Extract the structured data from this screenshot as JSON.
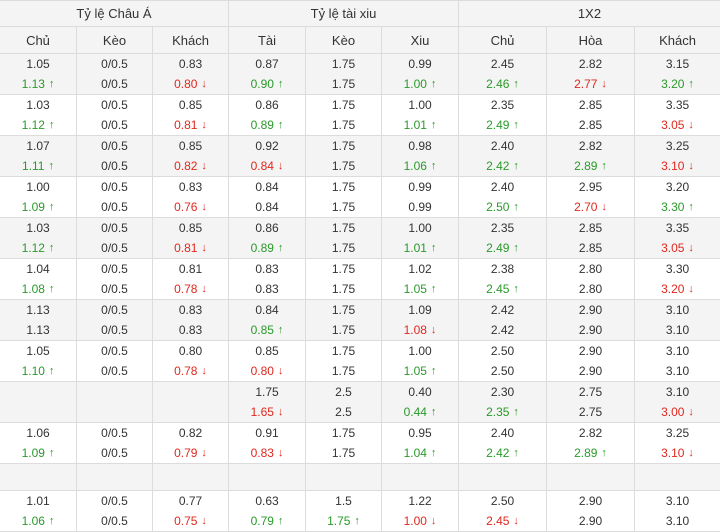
{
  "groups": [
    "Tỷ lệ Châu Á",
    "Tỷ lệ tài xiu",
    "1X2"
  ],
  "columns": [
    "Chủ",
    "Kèo",
    "Khách",
    "Tài",
    "Kèo",
    "Xiu",
    "Chủ",
    "Hòa",
    "Khách"
  ],
  "colors": {
    "up": "#2a9a2a",
    "down": "#e0281e",
    "header_bg": "#f4f4f4",
    "grid": "#dcdcdc"
  },
  "rows": [
    {
      "cells": [
        [
          "1.05",
          "1.13u"
        ],
        [
          "0/0.5",
          "0/0.5"
        ],
        [
          "0.83",
          "0.80d"
        ],
        [
          "0.87",
          "0.90u"
        ],
        [
          "1.75",
          "1.75"
        ],
        [
          "0.99",
          "1.00u"
        ],
        [
          "2.45",
          "2.46u"
        ],
        [
          "2.82",
          "2.77d"
        ],
        [
          "3.15",
          "3.20u"
        ]
      ]
    },
    {
      "cells": [
        [
          "1.03",
          "1.12u"
        ],
        [
          "0/0.5",
          "0/0.5"
        ],
        [
          "0.85",
          "0.81d"
        ],
        [
          "0.86",
          "0.89u"
        ],
        [
          "1.75",
          "1.75"
        ],
        [
          "1.00",
          "1.01u"
        ],
        [
          "2.35",
          "2.49u"
        ],
        [
          "2.85",
          "2.85"
        ],
        [
          "3.35",
          "3.05d"
        ]
      ]
    },
    {
      "cells": [
        [
          "1.07",
          "1.11u"
        ],
        [
          "0/0.5",
          "0/0.5"
        ],
        [
          "0.85",
          "0.82d"
        ],
        [
          "0.92",
          "0.84d"
        ],
        [
          "1.75",
          "1.75"
        ],
        [
          "0.98",
          "1.06u"
        ],
        [
          "2.40",
          "2.42u"
        ],
        [
          "2.82",
          "2.89u"
        ],
        [
          "3.25",
          "3.10d"
        ]
      ]
    },
    {
      "cells": [
        [
          "1.00",
          "1.09u"
        ],
        [
          "0/0.5",
          "0/0.5"
        ],
        [
          "0.83",
          "0.76d"
        ],
        [
          "0.84",
          "0.84"
        ],
        [
          "1.75",
          "1.75"
        ],
        [
          "0.99",
          "0.99"
        ],
        [
          "2.40",
          "2.50u"
        ],
        [
          "2.95",
          "2.70d"
        ],
        [
          "3.20",
          "3.30u"
        ]
      ]
    },
    {
      "cells": [
        [
          "1.03",
          "1.12u"
        ],
        [
          "0/0.5",
          "0/0.5"
        ],
        [
          "0.85",
          "0.81d"
        ],
        [
          "0.86",
          "0.89u"
        ],
        [
          "1.75",
          "1.75"
        ],
        [
          "1.00",
          "1.01u"
        ],
        [
          "2.35",
          "2.49u"
        ],
        [
          "2.85",
          "2.85"
        ],
        [
          "3.35",
          "3.05d"
        ]
      ]
    },
    {
      "cells": [
        [
          "1.04",
          "1.08u"
        ],
        [
          "0/0.5",
          "0/0.5"
        ],
        [
          "0.81",
          "0.78d"
        ],
        [
          "0.83",
          "0.83"
        ],
        [
          "1.75",
          "1.75"
        ],
        [
          "1.02",
          "1.05u"
        ],
        [
          "2.38",
          "2.45u"
        ],
        [
          "2.80",
          "2.80"
        ],
        [
          "3.30",
          "3.20d"
        ]
      ]
    },
    {
      "cells": [
        [
          "1.13",
          "1.13"
        ],
        [
          "0/0.5",
          "0/0.5"
        ],
        [
          "0.83",
          "0.83"
        ],
        [
          "0.84",
          "0.85u"
        ],
        [
          "1.75",
          "1.75"
        ],
        [
          "1.09",
          "1.08d"
        ],
        [
          "2.42",
          "2.42"
        ],
        [
          "2.90",
          "2.90"
        ],
        [
          "3.10",
          "3.10"
        ]
      ]
    },
    {
      "cells": [
        [
          "1.05",
          "1.10u"
        ],
        [
          "0/0.5",
          "0/0.5"
        ],
        [
          "0.80",
          "0.78d"
        ],
        [
          "0.85",
          "0.80d"
        ],
        [
          "1.75",
          "1.75"
        ],
        [
          "1.00",
          "1.05u"
        ],
        [
          "2.50",
          "2.50"
        ],
        [
          "2.90",
          "2.90"
        ],
        [
          "3.10",
          "3.10"
        ]
      ]
    },
    {
      "cells": [
        [
          "",
          ""
        ],
        [
          "",
          ""
        ],
        [
          "",
          ""
        ],
        [
          "1.75",
          "1.65d"
        ],
        [
          "2.5",
          "2.5"
        ],
        [
          "0.40",
          "0.44u"
        ],
        [
          "2.30",
          "2.35u"
        ],
        [
          "2.75",
          "2.75"
        ],
        [
          "3.10",
          "3.00d"
        ]
      ]
    },
    {
      "cells": [
        [
          "1.06",
          "1.09u"
        ],
        [
          "0/0.5",
          "0/0.5"
        ],
        [
          "0.82",
          "0.79d"
        ],
        [
          "0.91",
          "0.83d"
        ],
        [
          "1.75",
          "1.75"
        ],
        [
          "0.95",
          "1.04u"
        ],
        [
          "2.40",
          "2.42u"
        ],
        [
          "2.82",
          "2.89u"
        ],
        [
          "3.25",
          "3.10d"
        ]
      ]
    },
    {
      "cells": [
        [
          ""
        ],
        [
          ""
        ],
        [
          ""
        ],
        [
          ""
        ],
        [
          ""
        ],
        [
          ""
        ],
        [
          ""
        ],
        [
          ""
        ],
        [
          ""
        ]
      ]
    },
    {
      "cells": [
        [
          "1.01",
          "1.06u"
        ],
        [
          "0/0.5",
          "0/0.5"
        ],
        [
          "0.77",
          "0.75d"
        ],
        [
          "0.63",
          "0.79u"
        ],
        [
          "1.5",
          "1.75u"
        ],
        [
          "1.22",
          "1.00d"
        ],
        [
          "2.50",
          "2.45d"
        ],
        [
          "2.90",
          "2.90"
        ],
        [
          "3.10",
          "3.10"
        ]
      ]
    }
  ]
}
